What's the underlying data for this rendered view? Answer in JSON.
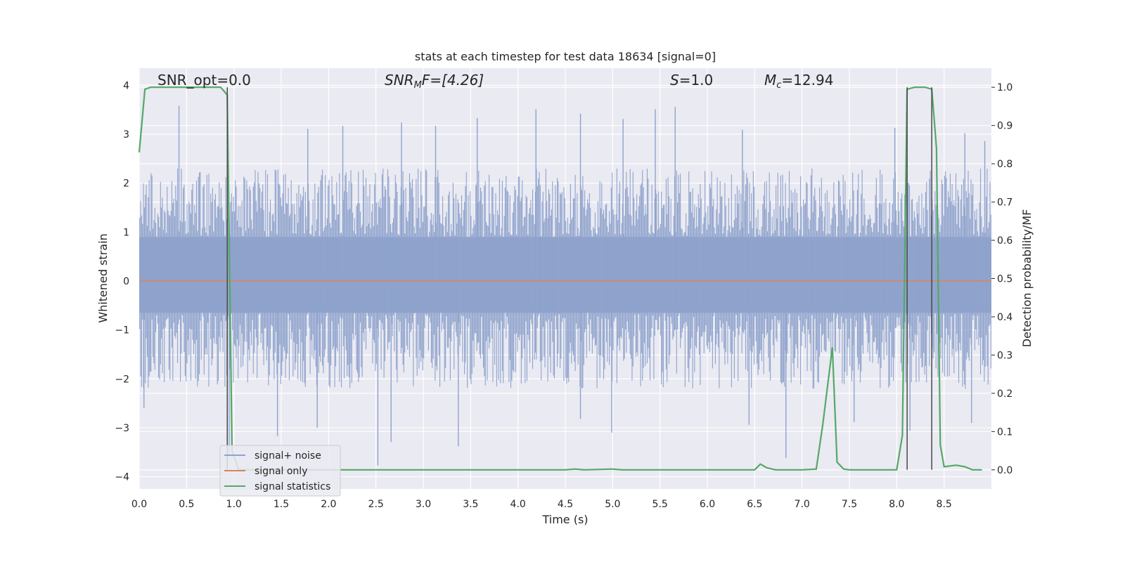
{
  "chart_data": {
    "type": "line",
    "title": "stats at each timestep for test data 18634 [signal=0]",
    "xlabel": "Time (s)",
    "ylabel": "Whitened strain",
    "ylabel_right": "Detection probability/MF",
    "xlim": [
      0,
      9.0
    ],
    "ylim": [
      -4.25,
      4.35
    ],
    "ylim_right": [
      -0.05,
      1.05
    ],
    "grid": true,
    "legend_position": "lower-left",
    "x_ticks": [
      0.0,
      0.5,
      1.0,
      1.5,
      2.0,
      2.5,
      3.0,
      3.5,
      4.0,
      4.5,
      5.0,
      5.5,
      6.0,
      6.5,
      7.0,
      7.5,
      8.0,
      8.5
    ],
    "x_tick_labels": [
      "0.0",
      "0.5",
      "1.0",
      "1.5",
      "2.0",
      "2.5",
      "3.0",
      "3.5",
      "4.0",
      "4.5",
      "5.0",
      "5.5",
      "6.0",
      "6.5",
      "7.0",
      "7.5",
      "8.0",
      "8.5"
    ],
    "y_ticks": [
      4,
      3,
      2,
      1,
      0,
      -1,
      -2,
      -3,
      -4
    ],
    "y_tick_labels": [
      "4",
      "3",
      "2",
      "1",
      "0",
      "−1",
      "−2",
      "−3",
      "−4"
    ],
    "y_right_ticks": [
      1.0,
      0.9,
      0.8,
      0.7,
      0.6,
      0.5,
      0.4,
      0.3,
      0.2,
      0.1,
      0.0
    ],
    "y_right_tick_labels": [
      "1.0",
      "0.9",
      "0.8",
      "0.7",
      "0.6",
      "0.5",
      "0.4",
      "0.3",
      "0.2",
      "0.1",
      "0.0"
    ],
    "annotations": {
      "snr_opt": "SNR_opt=0.0",
      "snr_mf_base": "SNR",
      "snr_mf_sub": "M",
      "snr_mf_rest": "F=[4.26]",
      "s_sym": "S",
      "s_val": "=1.0",
      "mc_base": "M",
      "mc_sub": "c",
      "mc_val": "=12.94"
    },
    "legend": [
      "signal+ noise",
      "signal only",
      "signal statistics"
    ],
    "colors": {
      "noise": "#8fa3cc",
      "signal": "#dd8452",
      "stats": "#55a868",
      "vline": "#4a4a4a",
      "plot_bg": "#eaeaf2",
      "grid": "#ffffff"
    },
    "series": [
      {
        "name": "signal+ noise",
        "axis": "left",
        "noise_profile": {
          "body_lower": -0.65,
          "body_upper": 0.9,
          "typical_max": 2.3,
          "typical_min": -2.2,
          "x_range": [
            0,
            9.0
          ]
        },
        "spikes": [
          {
            "x": 0.42,
            "y": 3.58
          },
          {
            "x": 0.93,
            "y": 2.99
          },
          {
            "x": 1.78,
            "y": 3.11
          },
          {
            "x": 2.15,
            "y": 3.17
          },
          {
            "x": 2.77,
            "y": 3.24
          },
          {
            "x": 3.13,
            "y": 3.17
          },
          {
            "x": 3.57,
            "y": 3.33
          },
          {
            "x": 4.19,
            "y": 3.51
          },
          {
            "x": 4.66,
            "y": 3.42
          },
          {
            "x": 5.11,
            "y": 3.31
          },
          {
            "x": 5.45,
            "y": 3.51
          },
          {
            "x": 5.66,
            "y": 3.56
          },
          {
            "x": 6.37,
            "y": 3.09
          },
          {
            "x": 7.98,
            "y": 3.13
          },
          {
            "x": 8.72,
            "y": 3.02
          },
          {
            "x": 8.93,
            "y": 2.86
          },
          {
            "x": 0.05,
            "y": -2.6
          },
          {
            "x": 1.46,
            "y": -3.17
          },
          {
            "x": 1.88,
            "y": -3.0
          },
          {
            "x": 2.52,
            "y": -3.77
          },
          {
            "x": 2.66,
            "y": -3.29
          },
          {
            "x": 3.37,
            "y": -3.38
          },
          {
            "x": 4.66,
            "y": -2.82
          },
          {
            "x": 4.99,
            "y": -3.1
          },
          {
            "x": 6.44,
            "y": -2.94
          },
          {
            "x": 6.83,
            "y": -3.62
          },
          {
            "x": 7.55,
            "y": -2.88
          },
          {
            "x": 8.14,
            "y": -3.06
          },
          {
            "x": 8.79,
            "y": -2.9
          },
          {
            "x": 0.95,
            "y": -3.6
          }
        ]
      },
      {
        "name": "signal only",
        "axis": "left",
        "x": [
          0,
          9.0
        ],
        "y": [
          0,
          0
        ]
      },
      {
        "name": "signal statistics",
        "axis": "right",
        "x": [
          0.0,
          0.06,
          0.12,
          0.2,
          0.3,
          0.4,
          0.5,
          0.6,
          0.7,
          0.8,
          0.86,
          0.93,
          0.98,
          1.05,
          1.5,
          2.0,
          2.5,
          3.0,
          3.5,
          4.0,
          4.5,
          4.6,
          4.7,
          5.0,
          5.1,
          5.5,
          6.0,
          6.5,
          6.56,
          6.63,
          6.72,
          6.8,
          7.0,
          7.15,
          7.22,
          7.32,
          7.37,
          7.44,
          7.5,
          7.6,
          8.0,
          8.06,
          8.11,
          8.19,
          8.25,
          8.3,
          8.37,
          8.42,
          8.46,
          8.5,
          8.56,
          8.63,
          8.72,
          8.8,
          8.9
        ],
        "y": [
          0.83,
          0.995,
          1.0,
          1.0,
          1.0,
          1.0,
          1.0,
          1.0,
          1.0,
          1.0,
          1.0,
          0.98,
          0.05,
          0.0,
          0.0,
          0.0,
          0.0,
          0.0,
          0.0,
          0.0,
          0.0,
          0.002,
          0.0,
          0.002,
          0.0,
          0.0,
          0.0,
          0.0,
          0.015,
          0.005,
          0.0,
          0.0,
          0.0,
          0.002,
          0.12,
          0.32,
          0.02,
          0.002,
          0.0,
          0.0,
          0.0,
          0.09,
          0.995,
          1.0,
          1.0,
          1.0,
          0.995,
          0.84,
          0.065,
          0.008,
          0.01,
          0.012,
          0.008,
          0.0,
          0.0
        ]
      }
    ],
    "vertical_lines": [
      {
        "x": 0.93,
        "y_top": 1.0,
        "y_bottom": 0.0
      },
      {
        "x": 8.11,
        "y_top": 1.0,
        "y_bottom": 0.0
      },
      {
        "x": 8.37,
        "y_top": 1.0,
        "y_bottom": 0.0
      }
    ]
  }
}
